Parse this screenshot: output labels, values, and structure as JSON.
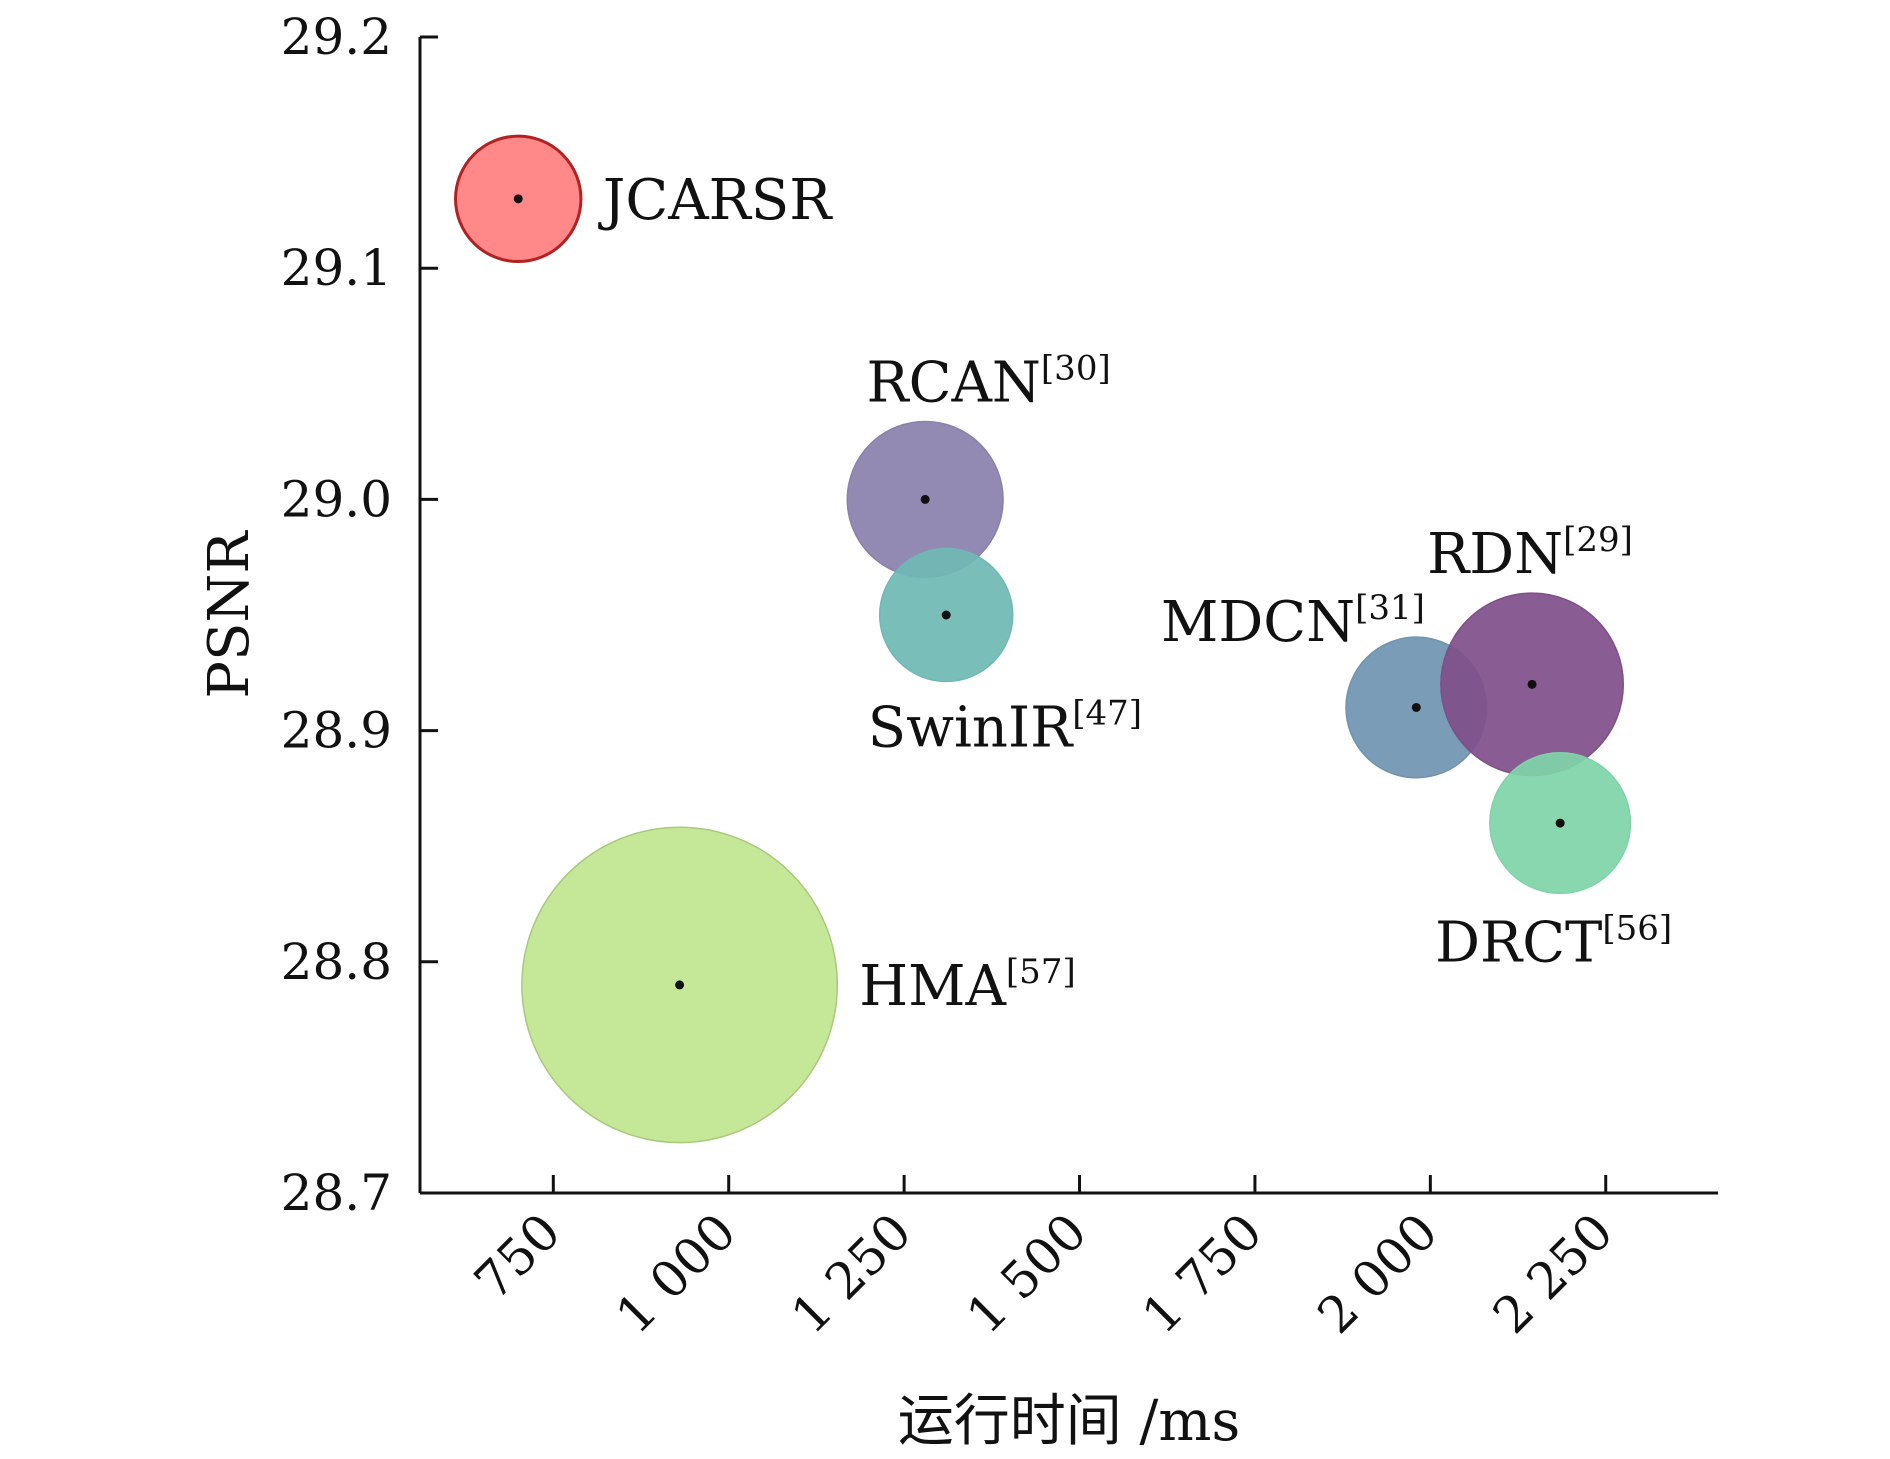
{
  "chart_data": {
    "type": "scatter",
    "title": "",
    "xlabel": "运行时间 /ms",
    "ylabel": "PSNR",
    "xlim": [
      560,
      2410
    ],
    "ylim": [
      28.7,
      29.2
    ],
    "xticks": [
      750,
      1000,
      1250,
      1500,
      1750,
      2000,
      2250
    ],
    "xtick_labels": [
      "750",
      "1 000",
      "1 250",
      "1 500",
      "1 750",
      "2 000",
      "2 250"
    ],
    "yticks": [
      28.7,
      28.8,
      28.9,
      29.0,
      29.1,
      29.2
    ],
    "ytick_labels": [
      "28.7",
      "28.8",
      "28.9",
      "29.0",
      "29.1",
      "29.2"
    ],
    "grid": false,
    "legend": "none",
    "points": [
      {
        "name": "JCARSR",
        "ref": "",
        "x": 700,
        "y": 29.13,
        "size": 0.33,
        "color": "#ff7f7f",
        "edge": "#b22222",
        "label_pos": "right"
      },
      {
        "name": "RCAN",
        "ref": "[30]",
        "x": 1280,
        "y": 29.0,
        "size": 0.41,
        "color": "#8a80ad",
        "edge": "#8a80ad",
        "label_pos": "above"
      },
      {
        "name": "SwinIR",
        "ref": "[47]",
        "x": 1310,
        "y": 28.95,
        "size": 0.35,
        "color": "#6fb8b4",
        "edge": "#6fb8b4",
        "label_pos": "below"
      },
      {
        "name": "MDCN",
        "ref": "[31]",
        "x": 1980,
        "y": 28.91,
        "size": 0.37,
        "color": "#6f94b0",
        "edge": "#6f94b0",
        "label_pos": "upper-left"
      },
      {
        "name": "RDN",
        "ref": "[29]",
        "x": 2145,
        "y": 28.92,
        "size": 0.48,
        "color": "#7f4f8a",
        "edge": "#7f4f8a",
        "label_pos": "above"
      },
      {
        "name": "DRCT",
        "ref": "[56]",
        "x": 2185,
        "y": 28.86,
        "size": 0.37,
        "color": "#7fd4a8",
        "edge": "#7fd4a8",
        "label_pos": "below"
      },
      {
        "name": "HMA",
        "ref": "[57]",
        "x": 930,
        "y": 28.79,
        "size": 0.83,
        "color": "#bfe68f",
        "edge": "#a9c97c",
        "label_pos": "right"
      }
    ]
  }
}
